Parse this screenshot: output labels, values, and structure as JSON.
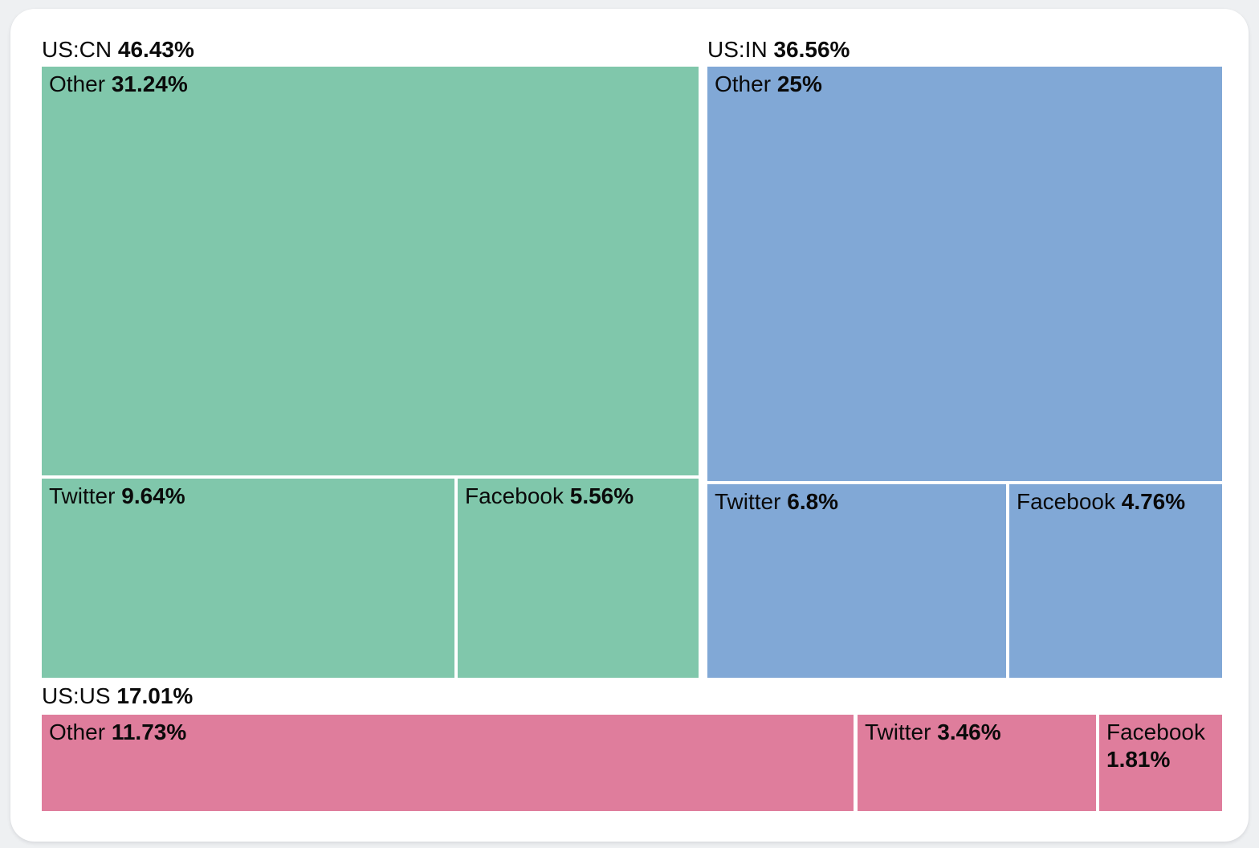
{
  "page": {
    "background_color": "#eef0f2",
    "card_color": "#ffffff"
  },
  "chart_data": {
    "type": "treemap",
    "unit": "%",
    "legend_position": "none",
    "groups": [
      {
        "label": "US:CN",
        "value": 46.43,
        "value_label": "46.43%",
        "color": "#80c7ab",
        "children": [
          {
            "label": "Other",
            "value": 31.24,
            "value_label": "31.24%"
          },
          {
            "label": "Twitter",
            "value": 9.64,
            "value_label": "9.64%"
          },
          {
            "label": "Facebook",
            "value": 5.56,
            "value_label": "5.56%"
          }
        ]
      },
      {
        "label": "US:IN",
        "value": 36.56,
        "value_label": "36.56%",
        "color": "#81a8d6",
        "children": [
          {
            "label": "Other",
            "value": 25,
            "value_label": "25%"
          },
          {
            "label": "Twitter",
            "value": 6.8,
            "value_label": "6.8%"
          },
          {
            "label": "Facebook",
            "value": 4.76,
            "value_label": "4.76%"
          }
        ]
      },
      {
        "label": "US:US",
        "value": 17.01,
        "value_label": "17.01%",
        "color": "#df7d9c",
        "children": [
          {
            "label": "Other",
            "value": 11.73,
            "value_label": "11.73%"
          },
          {
            "label": "Twitter",
            "value": 3.46,
            "value_label": "3.46%"
          },
          {
            "label": "Facebook",
            "value": 1.81,
            "value_label": "1.81%"
          }
        ]
      }
    ]
  }
}
